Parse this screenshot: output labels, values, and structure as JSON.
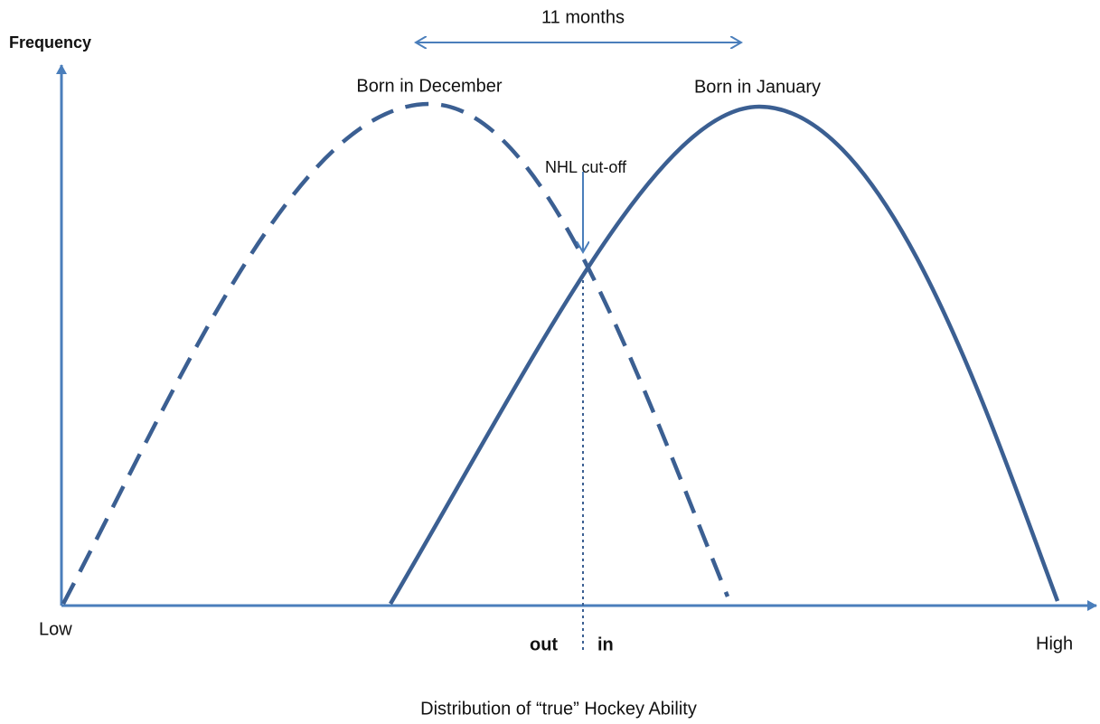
{
  "y_axis": {
    "label": "Frequency"
  },
  "x_axis": {
    "low_label": "Low",
    "high_label": "High",
    "out_label": "out",
    "in_label": "in",
    "caption": "Distribution of “true” Hockey Ability"
  },
  "annotations": {
    "gap": "11 months",
    "december": "Born in December",
    "january": "Born in January",
    "cutoff": "NHL cut-off"
  }
}
